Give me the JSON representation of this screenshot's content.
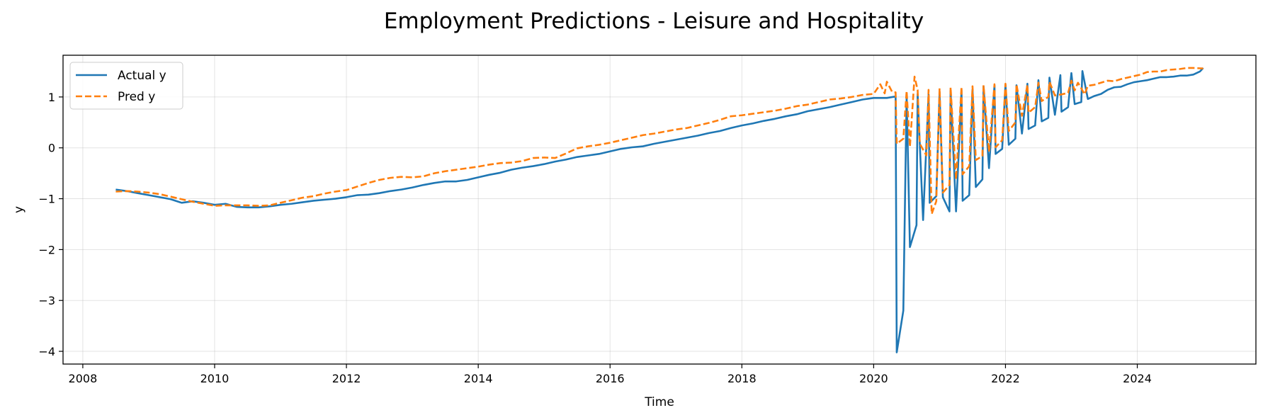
{
  "chart_data": {
    "type": "line",
    "title": "Employment Predictions - Leisure and Hospitality",
    "xlabel": "Time",
    "ylabel": "y",
    "xlim": [
      2007.7,
      2025.8
    ],
    "ylim": [
      -4.25,
      1.82
    ],
    "xticks": [
      2008,
      2010,
      2012,
      2014,
      2016,
      2018,
      2020,
      2022,
      2024
    ],
    "xtick_labels": [
      "2008",
      "2010",
      "2012",
      "2014",
      "2016",
      "2018",
      "2020",
      "2022",
      "2024"
    ],
    "yticks": [
      1,
      0,
      -1,
      -2,
      -3,
      -4
    ],
    "ytick_labels": [
      "1",
      "0",
      "−1",
      "−2",
      "−3",
      "−4"
    ],
    "grid": true,
    "legend_position": "upper-left",
    "series": [
      {
        "name": "Actual y",
        "color": "#1f77b4",
        "style": "solid",
        "points": [
          [
            2008.5,
            -0.82
          ],
          [
            2008.667,
            -0.85
          ],
          [
            2008.833,
            -0.89
          ],
          [
            2009.0,
            -0.93
          ],
          [
            2009.167,
            -0.97
          ],
          [
            2009.333,
            -1.01
          ],
          [
            2009.5,
            -1.08
          ],
          [
            2009.667,
            -1.05
          ],
          [
            2009.833,
            -1.08
          ],
          [
            2010.0,
            -1.12
          ],
          [
            2010.167,
            -1.1
          ],
          [
            2010.333,
            -1.16
          ],
          [
            2010.5,
            -1.17
          ],
          [
            2010.667,
            -1.17
          ],
          [
            2010.833,
            -1.15
          ],
          [
            2011.0,
            -1.12
          ],
          [
            2011.167,
            -1.1
          ],
          [
            2011.333,
            -1.07
          ],
          [
            2011.5,
            -1.04
          ],
          [
            2011.667,
            -1.02
          ],
          [
            2011.833,
            -1.0
          ],
          [
            2012.0,
            -0.97
          ],
          [
            2012.167,
            -0.93
          ],
          [
            2012.333,
            -0.92
          ],
          [
            2012.5,
            -0.89
          ],
          [
            2012.667,
            -0.85
          ],
          [
            2012.833,
            -0.82
          ],
          [
            2013.0,
            -0.78
          ],
          [
            2013.167,
            -0.73
          ],
          [
            2013.333,
            -0.69
          ],
          [
            2013.5,
            -0.66
          ],
          [
            2013.667,
            -0.66
          ],
          [
            2013.833,
            -0.63
          ],
          [
            2014.0,
            -0.58
          ],
          [
            2014.167,
            -0.53
          ],
          [
            2014.333,
            -0.49
          ],
          [
            2014.5,
            -0.43
          ],
          [
            2014.667,
            -0.39
          ],
          [
            2014.833,
            -0.36
          ],
          [
            2015.0,
            -0.32
          ],
          [
            2015.167,
            -0.27
          ],
          [
            2015.333,
            -0.23
          ],
          [
            2015.5,
            -0.18
          ],
          [
            2015.667,
            -0.15
          ],
          [
            2015.833,
            -0.12
          ],
          [
            2016.0,
            -0.07
          ],
          [
            2016.167,
            -0.02
          ],
          [
            2016.333,
            0.01
          ],
          [
            2016.5,
            0.03
          ],
          [
            2016.667,
            0.08
          ],
          [
            2016.833,
            0.12
          ],
          [
            2017.0,
            0.16
          ],
          [
            2017.167,
            0.2
          ],
          [
            2017.333,
            0.24
          ],
          [
            2017.5,
            0.29
          ],
          [
            2017.667,
            0.33
          ],
          [
            2017.833,
            0.39
          ],
          [
            2018.0,
            0.44
          ],
          [
            2018.167,
            0.48
          ],
          [
            2018.333,
            0.53
          ],
          [
            2018.5,
            0.57
          ],
          [
            2018.667,
            0.62
          ],
          [
            2018.833,
            0.66
          ],
          [
            2019.0,
            0.72
          ],
          [
            2019.167,
            0.76
          ],
          [
            2019.333,
            0.8
          ],
          [
            2019.5,
            0.85
          ],
          [
            2019.667,
            0.9
          ],
          [
            2019.833,
            0.95
          ],
          [
            2020.0,
            0.98
          ],
          [
            2020.167,
            0.98
          ],
          [
            2020.333,
            1.01
          ],
          [
            2020.5,
            1.04
          ],
          [
            2020.667,
            1.06
          ],
          [
            2020.833,
            1.05
          ],
          [
            2021.0,
            1.09
          ],
          [
            2021.167,
            1.12
          ],
          [
            2021.333,
            1.13
          ],
          [
            2021.5,
            1.15
          ],
          [
            2021.667,
            1.21
          ],
          [
            2021.833,
            1.23
          ],
          [
            2022.0,
            1.24
          ],
          [
            2022.167,
            1.23
          ],
          [
            2022.333,
            1.26
          ],
          [
            2022.5,
            1.33
          ],
          [
            2022.667,
            1.38
          ],
          [
            2022.833,
            1.43
          ],
          [
            2023.0,
            1.47
          ],
          [
            2023.167,
            1.51
          ],
          [
            2020.2,
            0.98
          ],
          [
            2020.35,
            -4.02
          ],
          [
            2020.45,
            -3.2
          ],
          [
            2020.55,
            -1.95
          ],
          [
            2020.65,
            -1.52
          ],
          [
            2020.75,
            -1.42
          ],
          [
            2020.85,
            -1.08
          ],
          [
            2020.95,
            -0.95
          ],
          [
            2021.05,
            -0.97
          ],
          [
            2021.15,
            -1.25
          ],
          [
            2021.25,
            -1.25
          ],
          [
            2021.35,
            -1.04
          ],
          [
            2021.45,
            -0.93
          ],
          [
            2021.55,
            -0.77
          ],
          [
            2021.65,
            -0.62
          ],
          [
            2021.75,
            -0.4
          ],
          [
            2021.85,
            -0.12
          ],
          [
            2021.95,
            -0.02
          ],
          [
            2022.05,
            0.06
          ],
          [
            2022.15,
            0.18
          ],
          [
            2022.25,
            0.28
          ],
          [
            2022.35,
            0.37
          ],
          [
            2022.45,
            0.44
          ],
          [
            2022.55,
            0.52
          ],
          [
            2022.65,
            0.59
          ],
          [
            2022.75,
            0.65
          ],
          [
            2022.85,
            0.71
          ],
          [
            2022.95,
            0.8
          ],
          [
            2023.05,
            0.86
          ],
          [
            2023.15,
            0.9
          ],
          [
            2023.25,
            0.96
          ],
          [
            2023.35,
            1.02
          ],
          [
            2023.45,
            1.06
          ],
          [
            2023.55,
            1.14
          ],
          [
            2023.65,
            1.19
          ],
          [
            2023.75,
            1.2
          ],
          [
            2023.85,
            1.25
          ],
          [
            2023.95,
            1.29
          ],
          [
            2024.05,
            1.31
          ],
          [
            2024.15,
            1.33
          ],
          [
            2024.25,
            1.36
          ],
          [
            2024.35,
            1.39
          ],
          [
            2024.45,
            1.39
          ],
          [
            2024.55,
            1.4
          ],
          [
            2024.65,
            1.42
          ],
          [
            2024.75,
            1.42
          ],
          [
            2024.85,
            1.44
          ],
          [
            2024.95,
            1.5
          ],
          [
            2025.0,
            1.57
          ]
        ]
      },
      {
        "name": "Pred y",
        "color": "#ff7f0e",
        "style": "dashed",
        "points": [
          [
            2008.5,
            -0.86
          ],
          [
            2008.667,
            -0.85
          ],
          [
            2008.833,
            -0.86
          ],
          [
            2009.0,
            -0.88
          ],
          [
            2009.167,
            -0.91
          ],
          [
            2009.333,
            -0.96
          ],
          [
            2009.5,
            -1.01
          ],
          [
            2009.667,
            -1.06
          ],
          [
            2009.833,
            -1.1
          ],
          [
            2010.0,
            -1.14
          ],
          [
            2010.167,
            -1.13
          ],
          [
            2010.333,
            -1.13
          ],
          [
            2010.5,
            -1.13
          ],
          [
            2010.667,
            -1.14
          ],
          [
            2010.833,
            -1.13
          ],
          [
            2011.0,
            -1.08
          ],
          [
            2011.167,
            -1.03
          ],
          [
            2011.333,
            -0.98
          ],
          [
            2011.5,
            -0.95
          ],
          [
            2011.667,
            -0.9
          ],
          [
            2011.833,
            -0.86
          ],
          [
            2012.0,
            -0.83
          ],
          [
            2012.167,
            -0.76
          ],
          [
            2012.333,
            -0.69
          ],
          [
            2012.5,
            -0.63
          ],
          [
            2012.667,
            -0.59
          ],
          [
            2012.833,
            -0.57
          ],
          [
            2013.0,
            -0.58
          ],
          [
            2013.167,
            -0.56
          ],
          [
            2013.333,
            -0.5
          ],
          [
            2013.5,
            -0.46
          ],
          [
            2013.667,
            -0.43
          ],
          [
            2013.833,
            -0.4
          ],
          [
            2014.0,
            -0.37
          ],
          [
            2014.167,
            -0.33
          ],
          [
            2014.333,
            -0.3
          ],
          [
            2014.5,
            -0.29
          ],
          [
            2014.667,
            -0.26
          ],
          [
            2014.833,
            -0.2
          ],
          [
            2015.0,
            -0.19
          ],
          [
            2015.167,
            -0.2
          ],
          [
            2015.333,
            -0.11
          ],
          [
            2015.5,
            -0.01
          ],
          [
            2015.667,
            0.03
          ],
          [
            2015.833,
            0.06
          ],
          [
            2016.0,
            0.1
          ],
          [
            2016.167,
            0.15
          ],
          [
            2016.333,
            0.2
          ],
          [
            2016.5,
            0.25
          ],
          [
            2016.667,
            0.28
          ],
          [
            2016.833,
            0.32
          ],
          [
            2017.0,
            0.36
          ],
          [
            2017.167,
            0.39
          ],
          [
            2017.333,
            0.44
          ],
          [
            2017.5,
            0.49
          ],
          [
            2017.667,
            0.55
          ],
          [
            2017.833,
            0.62
          ],
          [
            2018.0,
            0.64
          ],
          [
            2018.167,
            0.67
          ],
          [
            2018.333,
            0.7
          ],
          [
            2018.5,
            0.73
          ],
          [
            2018.667,
            0.77
          ],
          [
            2018.833,
            0.82
          ],
          [
            2019.0,
            0.85
          ],
          [
            2019.167,
            0.9
          ],
          [
            2019.333,
            0.95
          ],
          [
            2019.5,
            0.97
          ],
          [
            2019.667,
            1.0
          ],
          [
            2019.833,
            1.04
          ],
          [
            2020.0,
            1.06
          ],
          [
            2020.167,
            1.07
          ],
          [
            2020.333,
            1.09
          ],
          [
            2020.5,
            1.12
          ],
          [
            2020.667,
            1.14
          ],
          [
            2020.833,
            1.14
          ],
          [
            2021.0,
            1.17
          ],
          [
            2021.167,
            1.19
          ],
          [
            2021.333,
            1.2
          ],
          [
            2021.5,
            1.21
          ],
          [
            2021.667,
            1.23
          ],
          [
            2021.833,
            1.25
          ],
          [
            2022.0,
            1.26
          ],
          [
            2022.167,
            1.25
          ],
          [
            2022.333,
            1.24
          ],
          [
            2022.5,
            1.28
          ],
          [
            2022.667,
            1.3
          ],
          [
            2023.0,
            1.32
          ],
          [
            2023.1,
            1.28
          ],
          [
            2023.2,
            1.05
          ],
          [
            2020.1,
            1.25
          ],
          [
            2020.2,
            1.3
          ],
          [
            2020.28,
            1.1
          ],
          [
            2020.35,
            0.08
          ],
          [
            2020.45,
            0.18
          ],
          [
            2020.55,
            0.02
          ],
          [
            2020.62,
            1.4
          ],
          [
            2020.7,
            0.08
          ],
          [
            2020.8,
            -0.15
          ],
          [
            2020.88,
            -1.3
          ],
          [
            2020.95,
            -1.05
          ],
          [
            2021.05,
            -0.88
          ],
          [
            2021.15,
            -0.73
          ],
          [
            2021.25,
            -0.62
          ],
          [
            2021.35,
            -0.52
          ],
          [
            2021.45,
            -0.36
          ],
          [
            2021.55,
            -0.24
          ],
          [
            2021.65,
            -0.16
          ],
          [
            2021.75,
            -0.08
          ],
          [
            2021.85,
            0.01
          ],
          [
            2021.95,
            0.15
          ],
          [
            2022.05,
            0.33
          ],
          [
            2022.15,
            0.5
          ],
          [
            2022.25,
            0.63
          ],
          [
            2022.35,
            0.69
          ],
          [
            2022.45,
            0.8
          ],
          [
            2022.55,
            0.92
          ],
          [
            2022.65,
            1.0
          ],
          [
            2022.75,
            1.03
          ],
          [
            2022.85,
            1.05
          ],
          [
            2022.95,
            1.08
          ],
          [
            2023.05,
            1.13
          ],
          [
            2023.15,
            1.17
          ],
          [
            2023.25,
            1.22
          ],
          [
            2023.35,
            1.24
          ],
          [
            2023.45,
            1.28
          ],
          [
            2023.55,
            1.32
          ],
          [
            2023.65,
            1.31
          ],
          [
            2023.75,
            1.35
          ],
          [
            2023.85,
            1.38
          ],
          [
            2023.95,
            1.41
          ],
          [
            2024.05,
            1.44
          ],
          [
            2024.15,
            1.49
          ],
          [
            2024.25,
            1.5
          ],
          [
            2024.35,
            1.5
          ],
          [
            2024.45,
            1.53
          ],
          [
            2024.55,
            1.54
          ],
          [
            2024.65,
            1.55
          ],
          [
            2024.75,
            1.57
          ],
          [
            2024.85,
            1.57
          ],
          [
            2025.0,
            1.56
          ]
        ]
      }
    ]
  }
}
